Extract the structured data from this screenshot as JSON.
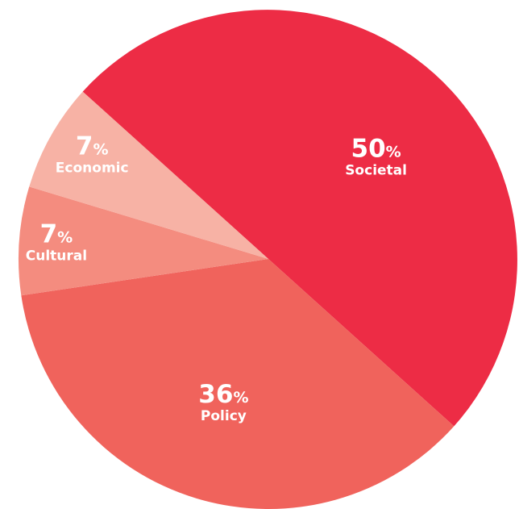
{
  "chart_data": {
    "type": "pie",
    "slices": [
      {
        "label": "Societal",
        "value": 50,
        "color": "#ed2c45"
      },
      {
        "label": "Policy",
        "value": 36,
        "color": "#f0635c"
      },
      {
        "label": "Cultural",
        "value": 7,
        "color": "#f48c7f"
      },
      {
        "label": "Economic",
        "value": 7,
        "color": "#f7b2a5"
      }
    ],
    "value_suffix": "%",
    "start_angle_deg": -138,
    "direction": "clockwise",
    "legend": "none",
    "labels_on_slices": true
  }
}
